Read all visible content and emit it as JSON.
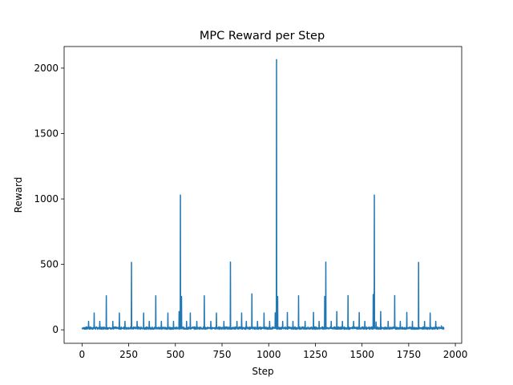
{
  "chart_data": {
    "type": "line",
    "title": "MPC Reward per Step",
    "xlabel": "Step",
    "ylabel": "Reward",
    "xlim": [
      -96,
      2034
    ],
    "ylim": [
      -103,
      2165
    ],
    "xticks": [
      0,
      250,
      500,
      750,
      1000,
      1250,
      1500,
      1750,
      2000
    ],
    "yticks": [
      0,
      500,
      1000,
      1500,
      2000
    ],
    "grid": false,
    "legend": "none",
    "series": [
      {
        "color": "#1f77b4",
        "x_range": [
          0,
          1940
        ],
        "baseline": 8,
        "baseline_noise": 14,
        "spikes": [
          {
            "x": 35,
            "y": 65
          },
          {
            "x": 65,
            "y": 128
          },
          {
            "x": 95,
            "y": 65
          },
          {
            "x": 130,
            "y": 260
          },
          {
            "x": 165,
            "y": 65
          },
          {
            "x": 200,
            "y": 128
          },
          {
            "x": 230,
            "y": 65
          },
          {
            "x": 265,
            "y": 515
          },
          {
            "x": 295,
            "y": 65
          },
          {
            "x": 330,
            "y": 128
          },
          {
            "x": 360,
            "y": 65
          },
          {
            "x": 395,
            "y": 260
          },
          {
            "x": 425,
            "y": 65
          },
          {
            "x": 460,
            "y": 128
          },
          {
            "x": 490,
            "y": 65
          },
          {
            "x": 520,
            "y": 140
          },
          {
            "x": 527,
            "y": 1030
          },
          {
            "x": 533,
            "y": 255
          },
          {
            "x": 560,
            "y": 65
          },
          {
            "x": 580,
            "y": 128
          },
          {
            "x": 615,
            "y": 65
          },
          {
            "x": 655,
            "y": 260
          },
          {
            "x": 690,
            "y": 65
          },
          {
            "x": 720,
            "y": 128
          },
          {
            "x": 760,
            "y": 65
          },
          {
            "x": 795,
            "y": 518
          },
          {
            "x": 830,
            "y": 65
          },
          {
            "x": 855,
            "y": 128
          },
          {
            "x": 880,
            "y": 65
          },
          {
            "x": 910,
            "y": 275
          },
          {
            "x": 940,
            "y": 65
          },
          {
            "x": 975,
            "y": 128
          },
          {
            "x": 1005,
            "y": 65
          },
          {
            "x": 1035,
            "y": 130
          },
          {
            "x": 1042,
            "y": 2065
          },
          {
            "x": 1048,
            "y": 255
          },
          {
            "x": 1075,
            "y": 65
          },
          {
            "x": 1100,
            "y": 132
          },
          {
            "x": 1130,
            "y": 65
          },
          {
            "x": 1160,
            "y": 260
          },
          {
            "x": 1195,
            "y": 65
          },
          {
            "x": 1240,
            "y": 133
          },
          {
            "x": 1270,
            "y": 65
          },
          {
            "x": 1300,
            "y": 255
          },
          {
            "x": 1306,
            "y": 518
          },
          {
            "x": 1335,
            "y": 65
          },
          {
            "x": 1365,
            "y": 140
          },
          {
            "x": 1395,
            "y": 65
          },
          {
            "x": 1425,
            "y": 262
          },
          {
            "x": 1455,
            "y": 65
          },
          {
            "x": 1485,
            "y": 132
          },
          {
            "x": 1515,
            "y": 65
          },
          {
            "x": 1560,
            "y": 270
          },
          {
            "x": 1566,
            "y": 1030
          },
          {
            "x": 1575,
            "y": 60
          },
          {
            "x": 1600,
            "y": 140
          },
          {
            "x": 1640,
            "y": 65
          },
          {
            "x": 1675,
            "y": 262
          },
          {
            "x": 1705,
            "y": 65
          },
          {
            "x": 1740,
            "y": 133
          },
          {
            "x": 1770,
            "y": 65
          },
          {
            "x": 1803,
            "y": 515
          },
          {
            "x": 1835,
            "y": 65
          },
          {
            "x": 1865,
            "y": 128
          },
          {
            "x": 1895,
            "y": 65
          },
          {
            "x": 1925,
            "y": 30
          }
        ]
      }
    ]
  }
}
